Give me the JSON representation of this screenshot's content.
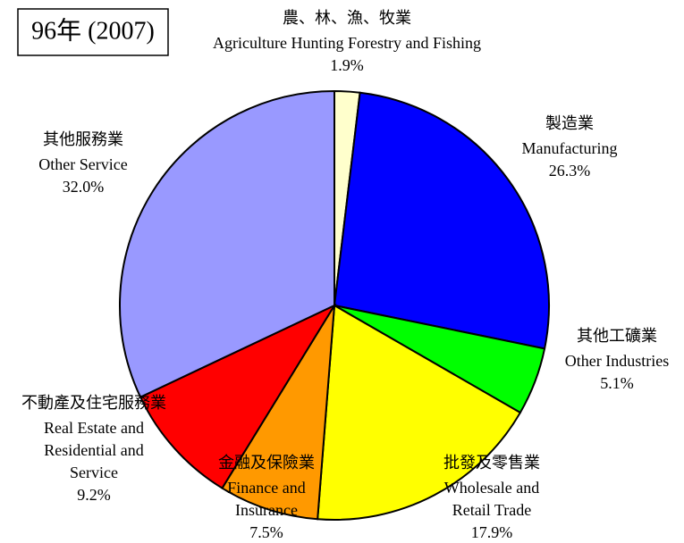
{
  "chart_data": {
    "type": "pie",
    "title": "96年 (2007)",
    "labels_zh": [
      "農、林、漁、牧業",
      "製造業",
      "其他工礦業",
      "批發及零售業",
      "金融及保險業",
      "不動產及住宅服務業",
      "其他服務業"
    ],
    "categories": [
      "Agriculture Hunting Forestry and Fishing",
      "Manufacturing",
      "Other Industries",
      "Wholesale and Retail Trade",
      "Finance and Insurance",
      "Real Estate and Residential and Service",
      "Other Service"
    ],
    "values": [
      1.9,
      26.3,
      5.1,
      17.9,
      7.5,
      9.2,
      32.0
    ],
    "value_labels": [
      "1.9%",
      "26.3%",
      "5.1%",
      "17.9%",
      "7.5%",
      "9.2%",
      "32.0%"
    ],
    "colors": [
      "#ffffcc",
      "#0000ff",
      "#00ff00",
      "#ffff00",
      "#ff9900",
      "#ff0000",
      "#9999ff"
    ]
  }
}
